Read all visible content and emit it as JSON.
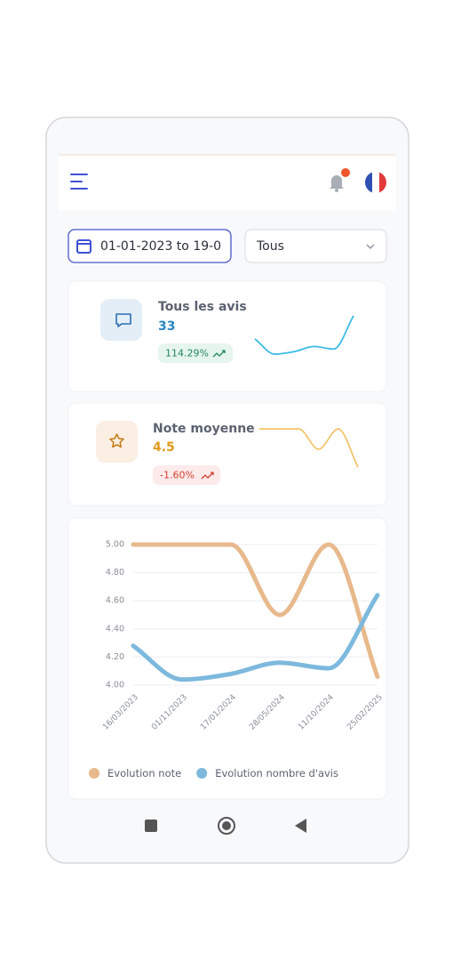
{
  "filters": {
    "date_range": "01-01-2023 to 19-0",
    "select": "Tous"
  },
  "cards": [
    {
      "title": "Tous les avis",
      "value": 33,
      "change": "114.29%"
    },
    {
      "title": "Note moyenne",
      "value": 4.5,
      "change": "-1.60%"
    }
  ],
  "chart_data": {
    "type": "line",
    "x": [
      "16/03/2023",
      "01/11/2023",
      "17/01/2024",
      "28/05/2024",
      "11/10/2024",
      "25/02/2025"
    ],
    "series": [
      {
        "name": "Evolution note",
        "color": "#e8b98c",
        "values": [
          5.0,
          5.0,
          5.0,
          4.5,
          5.0,
          4.06
        ]
      },
      {
        "name": "Evolution nombre d'avis",
        "color": "#7db9dd",
        "values": [
          4.28,
          4.04,
          4.08,
          4.16,
          4.12,
          4.64
        ]
      }
    ],
    "ylim": [
      4,
      5
    ],
    "yticks": [
      {
        "value": 4,
        "label": "4.00"
      },
      {
        "value": 4.2,
        "label": "4.20"
      },
      {
        "value": 4.4,
        "label": "4.40"
      },
      {
        "value": 4.6,
        "label": "4.60"
      },
      {
        "value": 4.8,
        "label": "4.80"
      },
      {
        "value": 5,
        "label": "5.00"
      }
    ],
    "grid": true
  }
}
